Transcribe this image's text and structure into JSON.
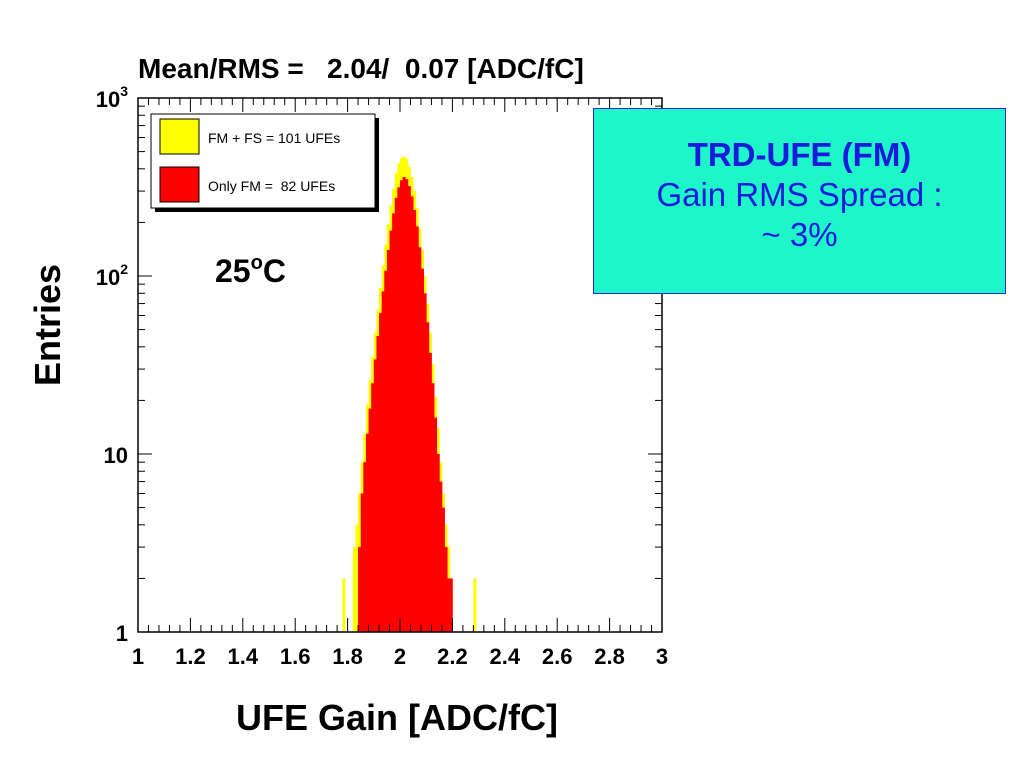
{
  "chart_data": {
    "type": "histogram",
    "title": "Mean/RMS =   2.04/  0.07 [ADC/fC]",
    "xlabel": "UFE Gain [ADC/fC]",
    "ylabel": "Entries",
    "xlim": [
      1,
      3
    ],
    "ylim": [
      1,
      1000
    ],
    "yscale": "log",
    "x_tick_labels": [
      "1",
      "1.2",
      "1.4",
      "1.6",
      "1.8",
      "2",
      "2.2",
      "2.4",
      "2.6",
      "2.8",
      "3"
    ],
    "x_tick_values": [
      1,
      1.2,
      1.4,
      1.6,
      1.8,
      2,
      2.2,
      2.4,
      2.6,
      2.8,
      3
    ],
    "y_tick_labels": [
      {
        "base": "1",
        "exp": "",
        "value": 1
      },
      {
        "base": "10",
        "exp": "",
        "value": 10
      },
      {
        "base": "10",
        "exp": "2",
        "value": 100
      },
      {
        "base": "10",
        "exp": "3",
        "value": 1000
      }
    ],
    "annotation": {
      "base": "25",
      "sup": "o",
      "unit": "C"
    },
    "legend_position": "top-left",
    "series": [
      {
        "name": "FM + FS = 101 UFEs",
        "color": "#ffff00",
        "bin_edges_start": 1.78,
        "bin_width": 0.01,
        "counts": [
          2,
          0,
          0,
          0,
          3,
          4,
          6,
          9,
          13,
          19,
          26,
          35,
          48,
          64,
          86,
          115,
          150,
          195,
          250,
          310,
          380,
          430,
          460,
          470,
          455,
          410,
          360,
          300,
          240,
          185,
          140,
          100,
          70,
          48,
          32,
          21,
          14,
          9,
          6,
          4,
          3,
          2,
          1,
          1,
          0,
          0,
          0,
          0,
          0,
          0,
          2
        ]
      },
      {
        "name": "Only FM =  82 UFEs",
        "color": "#ff0000",
        "bin_edges_start": 1.78,
        "bin_width": 0.01,
        "counts": [
          0,
          0,
          0,
          0,
          0,
          0,
          3,
          6,
          9,
          13,
          18,
          25,
          34,
          46,
          62,
          82,
          107,
          140,
          180,
          225,
          275,
          315,
          345,
          360,
          350,
          320,
          280,
          235,
          190,
          145,
          110,
          80,
          55,
          37,
          25,
          16,
          10,
          7,
          5,
          3,
          2,
          2,
          1,
          1,
          0,
          0,
          0,
          0,
          0,
          0,
          0
        ]
      }
    ]
  },
  "info_box": {
    "title": "TRD-UFE (FM)",
    "line1": "Gain RMS Spread :",
    "line2": "~ 3%"
  }
}
